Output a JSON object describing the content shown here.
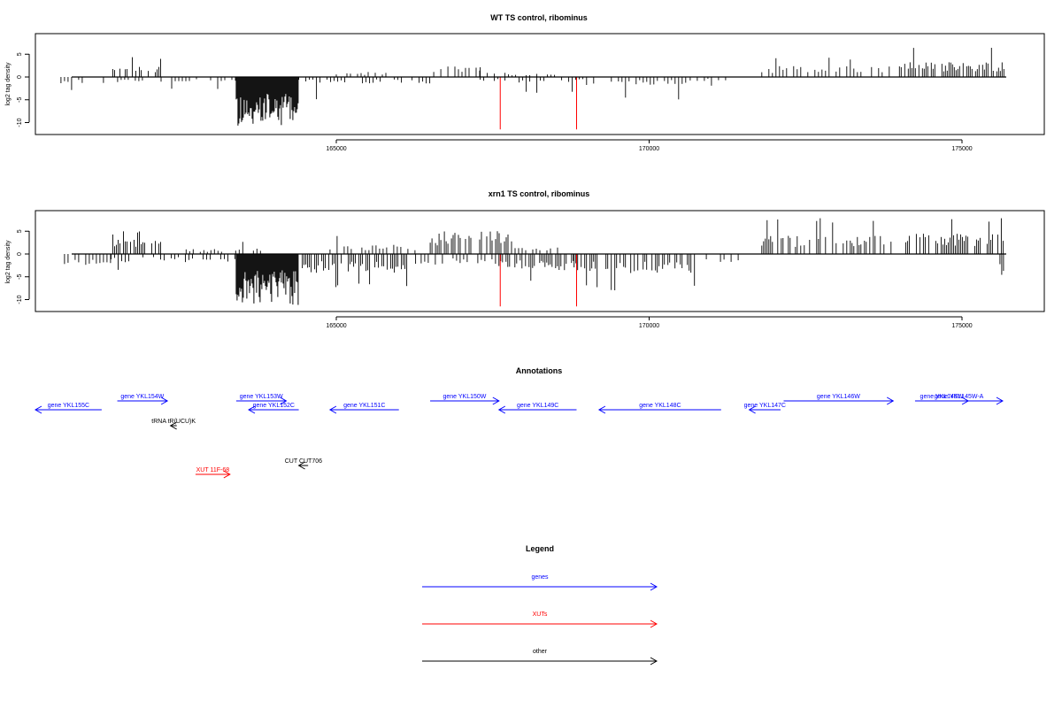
{
  "chart_data": [
    {
      "type": "bar",
      "title": "WT TS control, ribominus",
      "ylabel": "log2 tag density",
      "xlim": [
        160000,
        176000
      ],
      "ylim": [
        -12,
        9
      ],
      "x_ticks": [
        165000,
        170000,
        175000
      ],
      "x_tick_labels": [
        "165000",
        "170000",
        "175000"
      ],
      "y_ticks": [
        -10,
        -5,
        0,
        5
      ],
      "y_tick_labels": [
        "-10",
        "-5",
        "0",
        "5"
      ],
      "grid": false,
      "sense_regions": [
        {
          "start": 161400,
          "end": 162200,
          "mean": 2.2,
          "max": 4.5
        },
        {
          "start": 165000,
          "end": 165850,
          "mean": 1.0,
          "max": 3.0
        },
        {
          "start": 166500,
          "end": 167300,
          "mean": 2.0,
          "max": 5.0
        },
        {
          "start": 167300,
          "end": 168500,
          "mean": 0.8,
          "max": 2.5
        },
        {
          "start": 171800,
          "end": 173850,
          "mean": 2.0,
          "max": 4.5
        },
        {
          "start": 174000,
          "end": 175700,
          "mean": 2.7,
          "max": 6.5
        }
      ],
      "antisense_regions": [
        {
          "start": 160600,
          "end": 162000,
          "mean": -1.2,
          "max": -3.0
        },
        {
          "start": 162200,
          "end": 163400,
          "mean": -1.0,
          "max": -3.0
        },
        {
          "start": 163400,
          "end": 164400,
          "mean": -8.0,
          "max": -11.0
        },
        {
          "start": 164400,
          "end": 166500,
          "mean": -1.2,
          "max": -5.0
        },
        {
          "start": 167300,
          "end": 169000,
          "mean": -1.0,
          "max": -3.5
        },
        {
          "start": 169000,
          "end": 170600,
          "mean": -1.5,
          "max": -5.0
        },
        {
          "start": 170600,
          "end": 171300,
          "mean": -0.8,
          "max": -2.0
        }
      ],
      "highlight_lines": [
        {
          "x": 167620,
          "y": -11.5,
          "color": "#ff0000"
        },
        {
          "x": 168840,
          "y": -11.5,
          "color": "#ff0000"
        }
      ]
    },
    {
      "type": "bar",
      "title": "xrn1 TS control, ribominus",
      "ylabel": "log2 tag density",
      "xlim": [
        160000,
        176000
      ],
      "ylim": [
        -12,
        9
      ],
      "x_ticks": [
        165000,
        170000,
        175000
      ],
      "x_tick_labels": [
        "165000",
        "170000",
        "175000"
      ],
      "y_ticks": [
        -10,
        -5,
        0,
        5
      ],
      "y_tick_labels": [
        "-10",
        "-5",
        "0",
        "5"
      ],
      "grid": false,
      "sense_regions": [
        {
          "start": 161400,
          "end": 162200,
          "mean": 2.8,
          "max": 5.0
        },
        {
          "start": 162600,
          "end": 163900,
          "mean": 1.0,
          "max": 3.0
        },
        {
          "start": 164900,
          "end": 166300,
          "mean": 1.8,
          "max": 4.5
        },
        {
          "start": 166500,
          "end": 167800,
          "mean": 4.2,
          "max": 7.5
        },
        {
          "start": 167800,
          "end": 168800,
          "mean": 1.2,
          "max": 3.0
        },
        {
          "start": 171800,
          "end": 173900,
          "mean": 3.5,
          "max": 8.0
        },
        {
          "start": 174100,
          "end": 175700,
          "mean": 3.8,
          "max": 8.0
        }
      ],
      "antisense_regions": [
        {
          "start": 160600,
          "end": 161400,
          "mean": -2.0,
          "max": -4.5
        },
        {
          "start": 161400,
          "end": 163400,
          "mean": -1.5,
          "max": -3.5
        },
        {
          "start": 163400,
          "end": 164400,
          "mean": -8.0,
          "max": -11.5
        },
        {
          "start": 164400,
          "end": 166300,
          "mean": -3.5,
          "max": -7.5
        },
        {
          "start": 166300,
          "end": 167600,
          "mean": -2.0,
          "max": -5.0
        },
        {
          "start": 167600,
          "end": 168800,
          "mean": -3.0,
          "max": -6.5
        },
        {
          "start": 168800,
          "end": 170800,
          "mean": -3.5,
          "max": -8.0
        },
        {
          "start": 170800,
          "end": 171500,
          "mean": -1.5,
          "max": -3.5
        },
        {
          "start": 175550,
          "end": 175700,
          "mean": -4.0,
          "max": -5.0
        }
      ],
      "highlight_lines": [
        {
          "x": 167620,
          "y": -11.5,
          "color": "#ff0000"
        },
        {
          "x": 168840,
          "y": -11.5,
          "color": "#ff0000"
        }
      ]
    }
  ],
  "annotations": {
    "title": "Annotations",
    "features": [
      {
        "label": "gene YKL155C",
        "start": 160000,
        "end": 161250,
        "strand": "-",
        "color": "#0000ff"
      },
      {
        "label": "gene YKL154W",
        "start": 161500,
        "end": 162300,
        "strand": "+",
        "color": "#0000ff"
      },
      {
        "label": "gene YKL153W",
        "start": 163400,
        "end": 164200,
        "strand": "+",
        "color": "#0000ff"
      },
      {
        "label": "gene YKL152C",
        "start": 163600,
        "end": 164400,
        "strand": "-",
        "color": "#0000ff"
      },
      {
        "label": "gene YKL151C",
        "start": 164900,
        "end": 166000,
        "strand": "-",
        "color": "#0000ff"
      },
      {
        "label": "gene YKL150W",
        "start": 166500,
        "end": 167600,
        "strand": "+",
        "color": "#0000ff"
      },
      {
        "label": "gene YKL149C",
        "start": 167600,
        "end": 168840,
        "strand": "-",
        "color": "#0000ff"
      },
      {
        "label": "gene YKL148C",
        "start": 169200,
        "end": 171150,
        "strand": "-",
        "color": "#0000ff"
      },
      {
        "label": "gene YKL147C",
        "start": 171600,
        "end": 172100,
        "strand": "-",
        "color": "#0000ff"
      },
      {
        "label": "gene YKL146W",
        "start": 172150,
        "end": 173900,
        "strand": "+",
        "color": "#0000ff"
      },
      {
        "label": "gene YKL145W-A",
        "start": 174250,
        "end": 175650,
        "strand": "+",
        "color": "#0000ff"
      },
      {
        "label": "gene YKL145W",
        "start": 174250,
        "end": 175100,
        "strand": "+",
        "color": "#0000ff"
      },
      {
        "label": "tRNA tR(UCU)K",
        "start": 162350,
        "end": 162450,
        "strand": "-",
        "color": "#000000"
      },
      {
        "label": "CUT CUT706",
        "start": 164400,
        "end": 164550,
        "strand": "-",
        "color": "#000000"
      },
      {
        "label": "XUT 11F-68",
        "start": 162750,
        "end": 163300,
        "strand": "+",
        "color": "#ff0000"
      }
    ]
  },
  "legend": {
    "title": "Legend",
    "items": [
      {
        "label": "genes",
        "color": "#0000ff"
      },
      {
        "label": "XUTs",
        "color": "#ff0000"
      },
      {
        "label": "other",
        "color": "#000000"
      }
    ]
  }
}
